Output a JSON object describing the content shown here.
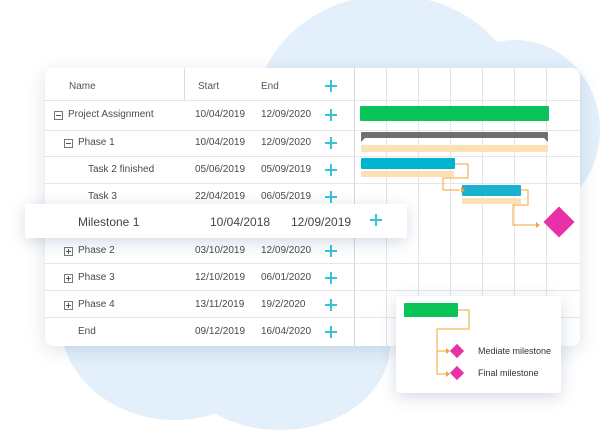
{
  "grid": {
    "headers": {
      "name": "Name",
      "start": "Start",
      "end": "End"
    },
    "rows": [
      {
        "name": "Project Assignment",
        "start": "10/04/2019",
        "end": "12/09/2020"
      },
      {
        "name": "Phase 1",
        "start": "10/04/2019",
        "end": "12/09/2020"
      },
      {
        "name": "Task 2 finished",
        "start": "05/06/2019",
        "end": "05/09/2019"
      },
      {
        "name": "Task 3",
        "start": "22/04/2019",
        "end": "06/05/2019"
      },
      {
        "name": "Phase 2",
        "start": "03/10/2019",
        "end": "12/09/2020"
      },
      {
        "name": "Phase 3",
        "start": "12/10/2019",
        "end": "06/01/2020"
      },
      {
        "name": "Phase 4",
        "start": "13/11/2019",
        "end": "19/2/2020"
      },
      {
        "name": "End",
        "start": "09/12/2019",
        "end": "16/04/2020"
      }
    ]
  },
  "milestone_row": {
    "name": "Milestone 1",
    "start": "10/04/2018",
    "end": "12/09/2019"
  },
  "legend": {
    "mediate": "Mediate milestone",
    "final": "Final milestone"
  },
  "colors": {
    "green": "#0ac45a",
    "gray": "#6f6f6f",
    "beige": "#fbe1b3",
    "blue": "#00b3d1",
    "teal": "#1ab0cf",
    "magenta": "#e830a8",
    "orange": "#f3a531",
    "plus": "#38c2d6"
  }
}
